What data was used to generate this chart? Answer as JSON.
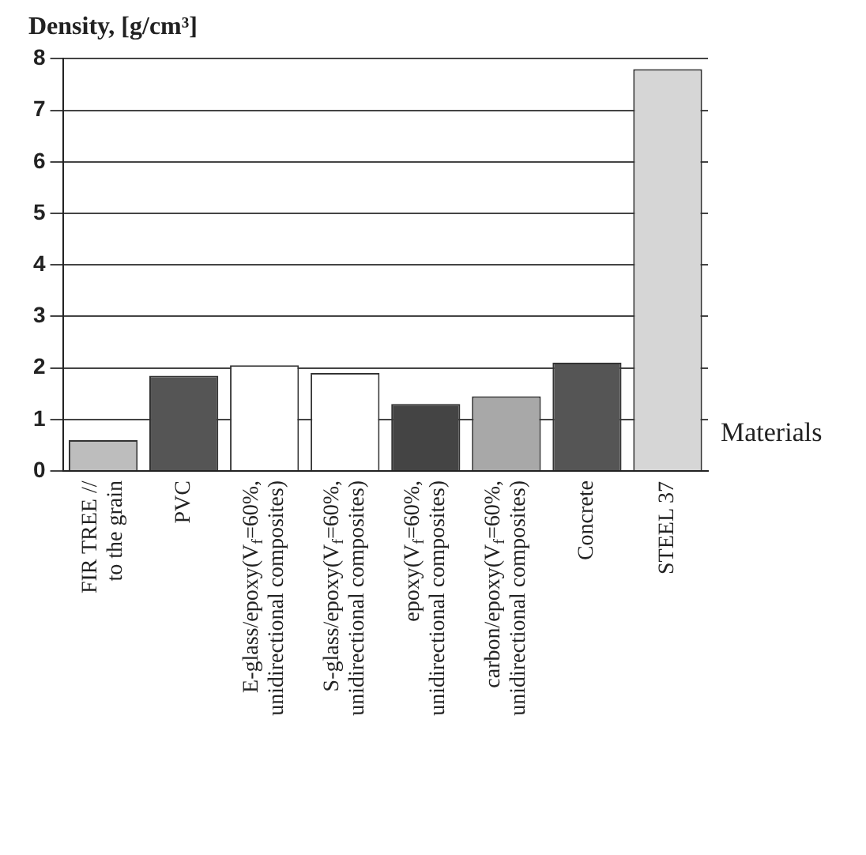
{
  "chart_data": {
    "type": "bar",
    "ylabel": "Density, [g/cm³]",
    "xlabel": "Materials",
    "categories": [
      "FIR TREE //\nto the grain",
      "PVC",
      "E-glass/epoxy(V$_{f}$=60%,\nunidirectional composites)",
      "S-glass/epoxy(V$_{f}$=60%,\nunidirectional composites)",
      "epoxy(V$_{f}$=60%,\nunidirectional composites)",
      "carbon/epoxy(V$_{f}$=60%,\nunidirectional composites)",
      "Concrete",
      "STEEL 37"
    ],
    "values": [
      0.6,
      1.85,
      2.05,
      1.9,
      1.3,
      1.45,
      2.1,
      7.8
    ],
    "colors": [
      "#bdbdbd",
      "#555555",
      "#ffffff",
      "#ffffff",
      "#444444",
      "#a8a8a8",
      "#555555",
      "#d6d6d6"
    ],
    "ylim": [
      0,
      8
    ],
    "yticks": [
      0,
      1,
      2,
      3,
      4,
      5,
      6,
      7,
      8
    ],
    "grid": "y",
    "legend": false
  }
}
